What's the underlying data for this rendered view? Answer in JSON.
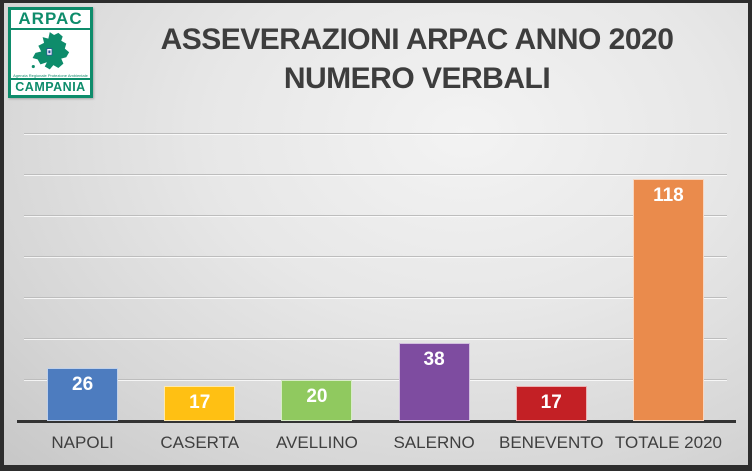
{
  "logo": {
    "brand": "ARPAC",
    "subtext": "Agenzia Regionale Protezione Ambientale",
    "region": "CAMPANIA",
    "colors": {
      "green": "#0e8c6b",
      "emblem_blue": "#2a4d9b"
    }
  },
  "title": {
    "line1": "ASSEVERAZIONI ARPAC ANNO 2020",
    "line2": "NUMERO VERBALI"
  },
  "chart_data": {
    "type": "bar",
    "title": "ASSEVERAZIONI ARPAC ANNO 2020 NUMERO VERBALI",
    "categories": [
      "NAPOLI",
      "CASERTA",
      "AVELLINO",
      "SALERNO",
      "BENEVENTO",
      "TOTALE 2020"
    ],
    "values": [
      26,
      17,
      20,
      38,
      17,
      118
    ],
    "bar_colors": [
      "#4d7cbf",
      "#ffc013",
      "#90c95f",
      "#7e4ca0",
      "#c32025",
      "#ea8b4c"
    ],
    "data_label_color": "#ffffff",
    "xlabel": "",
    "ylabel": "",
    "ylim": [
      0,
      140
    ],
    "gridline_interval": 20,
    "grid": true,
    "legend": false,
    "axis_tick_labels_visible": false
  }
}
